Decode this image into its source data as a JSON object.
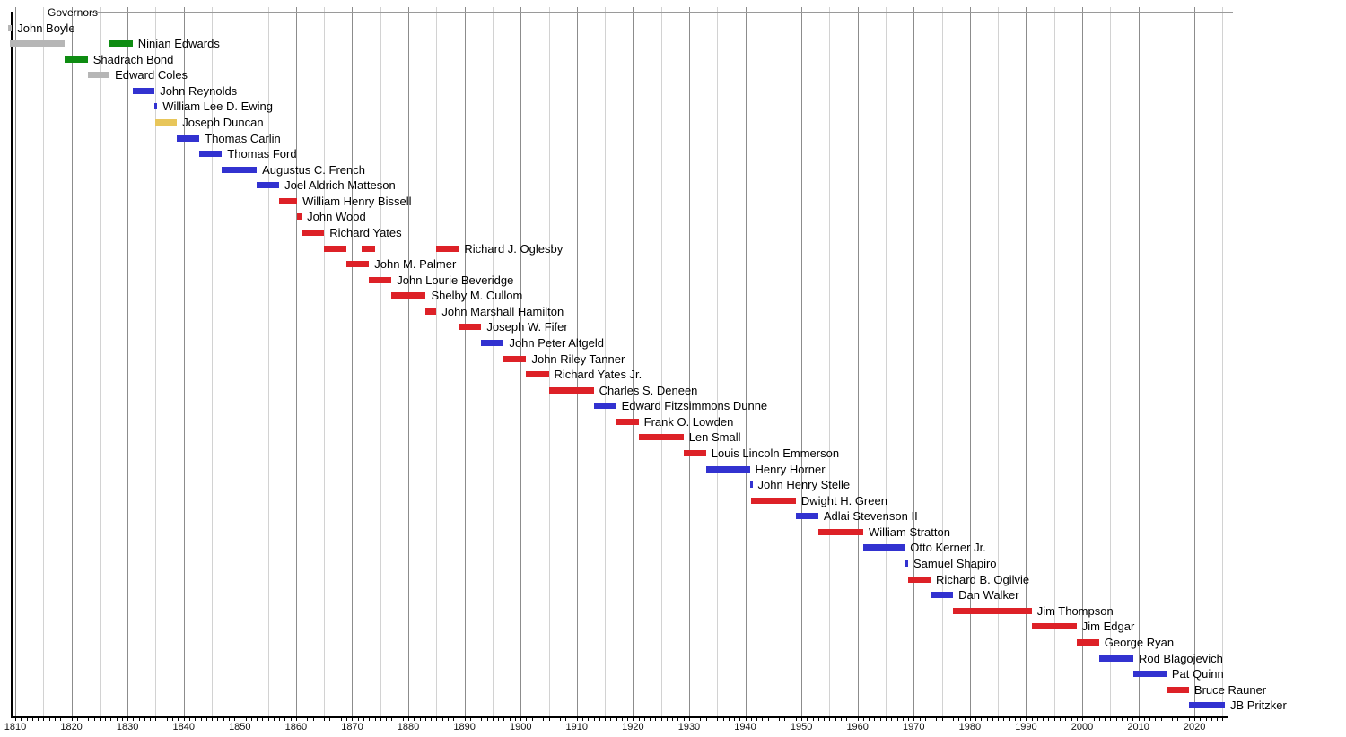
{
  "chart_data": {
    "type": "timeline",
    "title": "Governors",
    "x_axis": {
      "start_year": 1809,
      "end_year": 2026,
      "minor_tick_every_years": 1,
      "gridline_every_years": 5,
      "label_every_years": 10,
      "decade_labels": [
        "1810",
        "1820",
        "1830",
        "1840",
        "1850",
        "1860",
        "1870",
        "1880",
        "1890",
        "1900",
        "1910",
        "1920",
        "1930",
        "1940",
        "1950",
        "1960",
        "1970",
        "1980",
        "1990",
        "2000",
        "2010",
        "2020"
      ]
    },
    "palette": {
      "gray": "#b6b6b6",
      "green": "#0e8c12",
      "blue": "#3232d0",
      "gold": "#e8c65a",
      "red": "#dd2127"
    },
    "governors": [
      {
        "name": "John Boyle",
        "terms": [
          {
            "start": 1808.8,
            "end": 1809.4,
            "color": "gray"
          }
        ]
      },
      {
        "name": "Ninian Edwards",
        "terms": [
          {
            "start": 1809.0,
            "end": 1818.8,
            "color": "gray"
          },
          {
            "start": 1826.8,
            "end": 1830.9,
            "color": "green"
          }
        ]
      },
      {
        "name": "Shadrach Bond",
        "terms": [
          {
            "start": 1818.8,
            "end": 1822.9,
            "color": "green"
          }
        ]
      },
      {
        "name": "Edward Coles",
        "terms": [
          {
            "start": 1822.9,
            "end": 1826.8,
            "color": "gray"
          }
        ]
      },
      {
        "name": "John Reynolds",
        "terms": [
          {
            "start": 1830.9,
            "end": 1834.8,
            "color": "blue"
          }
        ]
      },
      {
        "name": "William Lee D. Ewing",
        "terms": [
          {
            "start": 1834.8,
            "end": 1835.1,
            "color": "blue"
          }
        ]
      },
      {
        "name": "Joseph Duncan",
        "terms": [
          {
            "start": 1834.9,
            "end": 1838.8,
            "color": "gold"
          }
        ]
      },
      {
        "name": "Thomas Carlin",
        "terms": [
          {
            "start": 1838.8,
            "end": 1842.8,
            "color": "blue"
          }
        ]
      },
      {
        "name": "Thomas Ford",
        "terms": [
          {
            "start": 1842.8,
            "end": 1846.8,
            "color": "blue"
          }
        ]
      },
      {
        "name": "Augustus C. French",
        "terms": [
          {
            "start": 1846.8,
            "end": 1853.0,
            "color": "blue"
          }
        ]
      },
      {
        "name": "Joel Aldrich Matteson",
        "terms": [
          {
            "start": 1853.0,
            "end": 1857.0,
            "color": "blue"
          }
        ]
      },
      {
        "name": "William Henry Bissell",
        "terms": [
          {
            "start": 1857.0,
            "end": 1860.2,
            "color": "red"
          }
        ]
      },
      {
        "name": "John Wood",
        "terms": [
          {
            "start": 1860.2,
            "end": 1861.0,
            "color": "red"
          }
        ]
      },
      {
        "name": "Richard Yates",
        "terms": [
          {
            "start": 1861.0,
            "end": 1865.0,
            "color": "red"
          }
        ]
      },
      {
        "name": "Richard J. Oglesby",
        "terms": [
          {
            "start": 1865.0,
            "end": 1869.0,
            "color": "red"
          },
          {
            "start": 1871.7,
            "end": 1874.0,
            "color": "red"
          },
          {
            "start": 1885.0,
            "end": 1889.0,
            "color": "red"
          }
        ]
      },
      {
        "name": "John M. Palmer",
        "terms": [
          {
            "start": 1869.0,
            "end": 1873.0,
            "color": "red"
          }
        ]
      },
      {
        "name": "John Lourie Beveridge",
        "terms": [
          {
            "start": 1873.0,
            "end": 1877.0,
            "color": "red"
          }
        ]
      },
      {
        "name": "Shelby M. Cullom",
        "terms": [
          {
            "start": 1877.0,
            "end": 1883.1,
            "color": "red"
          }
        ]
      },
      {
        "name": "John Marshall Hamilton",
        "terms": [
          {
            "start": 1883.1,
            "end": 1885.0,
            "color": "red"
          }
        ]
      },
      {
        "name": "Joseph W. Fifer",
        "terms": [
          {
            "start": 1889.0,
            "end": 1893.0,
            "color": "red"
          }
        ]
      },
      {
        "name": "John Peter Altgeld",
        "terms": [
          {
            "start": 1893.0,
            "end": 1897.0,
            "color": "blue"
          }
        ]
      },
      {
        "name": "John Riley Tanner",
        "terms": [
          {
            "start": 1897.0,
            "end": 1901.0,
            "color": "red"
          }
        ]
      },
      {
        "name": "Richard Yates Jr.",
        "terms": [
          {
            "start": 1901.0,
            "end": 1905.0,
            "color": "red"
          }
        ]
      },
      {
        "name": "Charles S. Deneen",
        "terms": [
          {
            "start": 1905.0,
            "end": 1913.0,
            "color": "red"
          }
        ]
      },
      {
        "name": "Edward Fitzsimmons Dunne",
        "terms": [
          {
            "start": 1913.0,
            "end": 1917.0,
            "color": "blue"
          }
        ]
      },
      {
        "name": "Frank O. Lowden",
        "terms": [
          {
            "start": 1917.0,
            "end": 1921.0,
            "color": "red"
          }
        ]
      },
      {
        "name": "Len Small",
        "terms": [
          {
            "start": 1921.0,
            "end": 1929.0,
            "color": "red"
          }
        ]
      },
      {
        "name": "Louis Lincoln Emmerson",
        "terms": [
          {
            "start": 1929.0,
            "end": 1933.0,
            "color": "red"
          }
        ]
      },
      {
        "name": "Henry Horner",
        "terms": [
          {
            "start": 1933.0,
            "end": 1940.8,
            "color": "blue"
          }
        ]
      },
      {
        "name": "John Henry Stelle",
        "terms": [
          {
            "start": 1940.8,
            "end": 1941.0,
            "color": "blue"
          }
        ]
      },
      {
        "name": "Dwight H. Green",
        "terms": [
          {
            "start": 1941.0,
            "end": 1949.0,
            "color": "red"
          }
        ]
      },
      {
        "name": "Adlai Stevenson II",
        "terms": [
          {
            "start": 1949.0,
            "end": 1953.0,
            "color": "blue"
          }
        ]
      },
      {
        "name": "William Stratton",
        "terms": [
          {
            "start": 1953.0,
            "end": 1961.0,
            "color": "red"
          }
        ]
      },
      {
        "name": "Otto Kerner Jr.",
        "terms": [
          {
            "start": 1961.0,
            "end": 1968.4,
            "color": "blue"
          }
        ]
      },
      {
        "name": "Samuel Shapiro",
        "terms": [
          {
            "start": 1968.4,
            "end": 1969.0,
            "color": "blue"
          }
        ]
      },
      {
        "name": "Richard B. Ogilvie",
        "terms": [
          {
            "start": 1969.0,
            "end": 1973.0,
            "color": "red"
          }
        ]
      },
      {
        "name": "Dan Walker",
        "terms": [
          {
            "start": 1973.0,
            "end": 1977.0,
            "color": "blue"
          }
        ]
      },
      {
        "name": "Jim Thompson",
        "terms": [
          {
            "start": 1977.0,
            "end": 1991.0,
            "color": "red"
          }
        ]
      },
      {
        "name": "Jim Edgar",
        "terms": [
          {
            "start": 1991.0,
            "end": 1999.0,
            "color": "red"
          }
        ]
      },
      {
        "name": "George Ryan",
        "terms": [
          {
            "start": 1999.0,
            "end": 2003.0,
            "color": "red"
          }
        ]
      },
      {
        "name": "Rod Blagojevich",
        "terms": [
          {
            "start": 2003.0,
            "end": 2009.1,
            "color": "blue"
          }
        ]
      },
      {
        "name": "Pat Quinn",
        "terms": [
          {
            "start": 2009.1,
            "end": 2015.0,
            "color": "blue"
          }
        ]
      },
      {
        "name": "Bruce Rauner",
        "terms": [
          {
            "start": 2015.0,
            "end": 2019.0,
            "color": "red"
          }
        ]
      },
      {
        "name": "JB Pritzker",
        "terms": [
          {
            "start": 2019.0,
            "end": 2025.4,
            "color": "blue"
          }
        ]
      }
    ]
  }
}
